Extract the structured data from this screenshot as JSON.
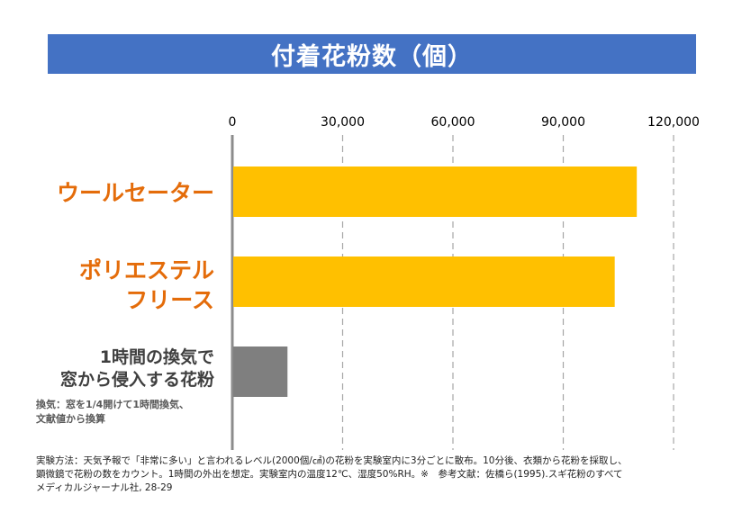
{
  "chart_data": {
    "type": "bar",
    "orientation": "horizontal",
    "title": "付着花粉数（個）",
    "categories": [
      [
        "ウールセーター"
      ],
      [
        "ポリエステル",
        "フリース"
      ],
      [
        "1時間の換気で",
        "窓から侵入する花粉"
      ]
    ],
    "category_note": [
      "換気：窓を1/4開けて1時間換気、",
      "文献値から換算"
    ],
    "values": [
      110000,
      104000,
      15000
    ],
    "bar_colors": [
      "#ffc000",
      "#ffc000",
      "#7f7f7f"
    ],
    "xlim": [
      0,
      120000
    ],
    "ticks": [
      0,
      30000,
      60000,
      90000,
      120000
    ],
    "tick_labels": [
      "0",
      "30,000",
      "60,000",
      "90,000",
      "120,000"
    ],
    "xaxis_position": "top",
    "grid": "dashed-vertical"
  },
  "footnote": [
    "実験方法：天気予報で「非常に多い」と言われるレベル(2000個/㎠)の花粉を実験室内に3分ごとに散布。10分後、衣類から花粉を採取し、",
    "顕微鏡で花粉の数をカウント。1時間の外出を想定。実験室内の温度12℃、湿度50%RH。※　参考文献：佐橋ら(1995).スギ花粉のすべて",
    "メディカルジャーナル社, 28-29"
  ]
}
